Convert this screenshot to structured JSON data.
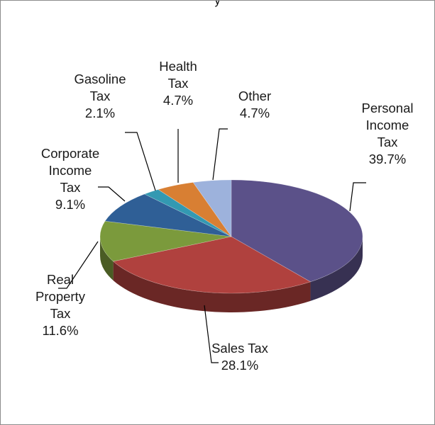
{
  "chart_data": {
    "type": "pie",
    "title": "",
    "title_fragment": "y",
    "style": "3d",
    "slices": [
      {
        "label": [
          "Personal",
          "Income",
          "Tax"
        ],
        "value": 39.7,
        "value_text": "39.7%",
        "color": "#5b5189"
      },
      {
        "label": [
          "Sales Tax"
        ],
        "value": 28.1,
        "value_text": "28.1%",
        "color": "#b0413e"
      },
      {
        "label": [
          "Real",
          "Property",
          "Tax"
        ],
        "value": 11.6,
        "value_text": "11.6%",
        "color": "#7b9a3c"
      },
      {
        "label": [
          "Corporate",
          "Income",
          "Tax"
        ],
        "value": 9.1,
        "value_text": "9.1%",
        "color": "#2f5f96"
      },
      {
        "label": [
          "Gasoline",
          "Tax"
        ],
        "value": 2.1,
        "value_text": "2.1%",
        "color": "#3399b2"
      },
      {
        "label": [
          "Health",
          "Tax"
        ],
        "value": 4.7,
        "value_text": "4.7%",
        "color": "#d87f33"
      },
      {
        "label": [
          "Other"
        ],
        "value": 4.7,
        "value_text": "4.7%",
        "color": "#9db2dc"
      }
    ],
    "legend": "none",
    "data_labels": "outside-with-leader-lines"
  }
}
